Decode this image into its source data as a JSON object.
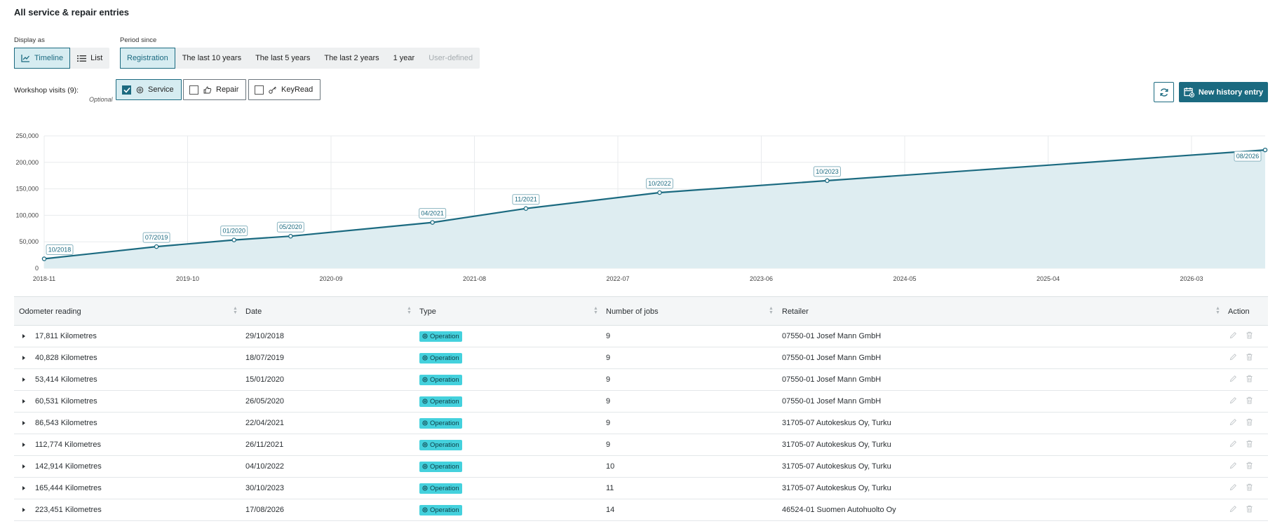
{
  "heading": "All service & repair entries",
  "display_as": {
    "label": "Display as",
    "options": [
      {
        "label": "Timeline",
        "icon": "line-chart-icon",
        "active": true
      },
      {
        "label": "List",
        "icon": "list-icon",
        "active": false
      }
    ]
  },
  "period": {
    "label": "Period since",
    "options": [
      {
        "label": "Registration",
        "active": true
      },
      {
        "label": "The last 10 years"
      },
      {
        "label": "The last 5 years"
      },
      {
        "label": "The last 2 years"
      },
      {
        "label": "1 year"
      },
      {
        "label": "User-defined",
        "disabled": true
      }
    ]
  },
  "workshop": {
    "label": "Workshop visits (9):",
    "optional": "Optional",
    "filters": [
      {
        "label": "Service",
        "icon": "service-gear-icon",
        "checked": true
      },
      {
        "label": "Repair",
        "icon": "thumbs-up-icon",
        "checked": false
      },
      {
        "label": "KeyRead",
        "icon": "key-icon",
        "checked": false
      }
    ]
  },
  "buttons": {
    "refresh_icon": "refresh-icon",
    "new_entry": "New history entry",
    "new_entry_icon": "calendar-add-icon"
  },
  "chart_data": {
    "type": "area",
    "y_ticks": [
      "250,000",
      "200,000",
      "150,000",
      "100,000",
      "50,000",
      "0"
    ],
    "ylim": [
      0,
      250000
    ],
    "x_ticks": [
      "2018-11",
      "2019-10",
      "2020-09",
      "2021-08",
      "2022-07",
      "2023-06",
      "2024-05",
      "2025-04",
      "2026-03"
    ],
    "grid": true,
    "color": "#1b6a80",
    "fill": "#deedf1",
    "points": [
      {
        "label": "10/2018",
        "x": "2018-10-29",
        "y": 17811
      },
      {
        "label": "07/2019",
        "x": "2019-07-18",
        "y": 40828
      },
      {
        "label": "01/2020",
        "x": "2020-01-15",
        "y": 53414
      },
      {
        "label": "05/2020",
        "x": "2020-05-26",
        "y": 60531
      },
      {
        "label": "04/2021",
        "x": "2021-04-22",
        "y": 86543
      },
      {
        "label": "11/2021",
        "x": "2021-11-26",
        "y": 112774
      },
      {
        "label": "10/2022",
        "x": "2022-10-04",
        "y": 142914
      },
      {
        "label": "10/2023",
        "x": "2023-10-30",
        "y": 165444
      },
      {
        "label": "08/2026",
        "x": "2026-08-17",
        "y": 223451
      }
    ]
  },
  "table": {
    "columns": [
      "Odometer reading",
      "Date",
      "Type",
      "Number of jobs",
      "Retailer",
      "Action"
    ],
    "rows": [
      {
        "odometer": "17,811 Kilometres",
        "date": "29/10/2018",
        "type": "Operation",
        "jobs": "9",
        "retailer": "07550-01 Josef Mann GmbH"
      },
      {
        "odometer": "40,828 Kilometres",
        "date": "18/07/2019",
        "type": "Operation",
        "jobs": "9",
        "retailer": "07550-01 Josef Mann GmbH"
      },
      {
        "odometer": "53,414 Kilometres",
        "date": "15/01/2020",
        "type": "Operation",
        "jobs": "9",
        "retailer": "07550-01 Josef Mann GmbH"
      },
      {
        "odometer": "60,531 Kilometres",
        "date": "26/05/2020",
        "type": "Operation",
        "jobs": "9",
        "retailer": "07550-01 Josef Mann GmbH"
      },
      {
        "odometer": "86,543 Kilometres",
        "date": "22/04/2021",
        "type": "Operation",
        "jobs": "9",
        "retailer": "31705-07 Autokeskus Oy, Turku"
      },
      {
        "odometer": "112,774 Kilometres",
        "date": "26/11/2021",
        "type": "Operation",
        "jobs": "9",
        "retailer": "31705-07 Autokeskus Oy, Turku"
      },
      {
        "odometer": "142,914 Kilometres",
        "date": "04/10/2022",
        "type": "Operation",
        "jobs": "10",
        "retailer": "31705-07 Autokeskus Oy, Turku"
      },
      {
        "odometer": "165,444 Kilometres",
        "date": "30/10/2023",
        "type": "Operation",
        "jobs": "11",
        "retailer": "31705-07 Autokeskus Oy, Turku"
      },
      {
        "odometer": "223,451 Kilometres",
        "date": "17/08/2026",
        "type": "Operation",
        "jobs": "14",
        "retailer": "46524-01 Suomen Autohuolto Oy"
      }
    ]
  }
}
